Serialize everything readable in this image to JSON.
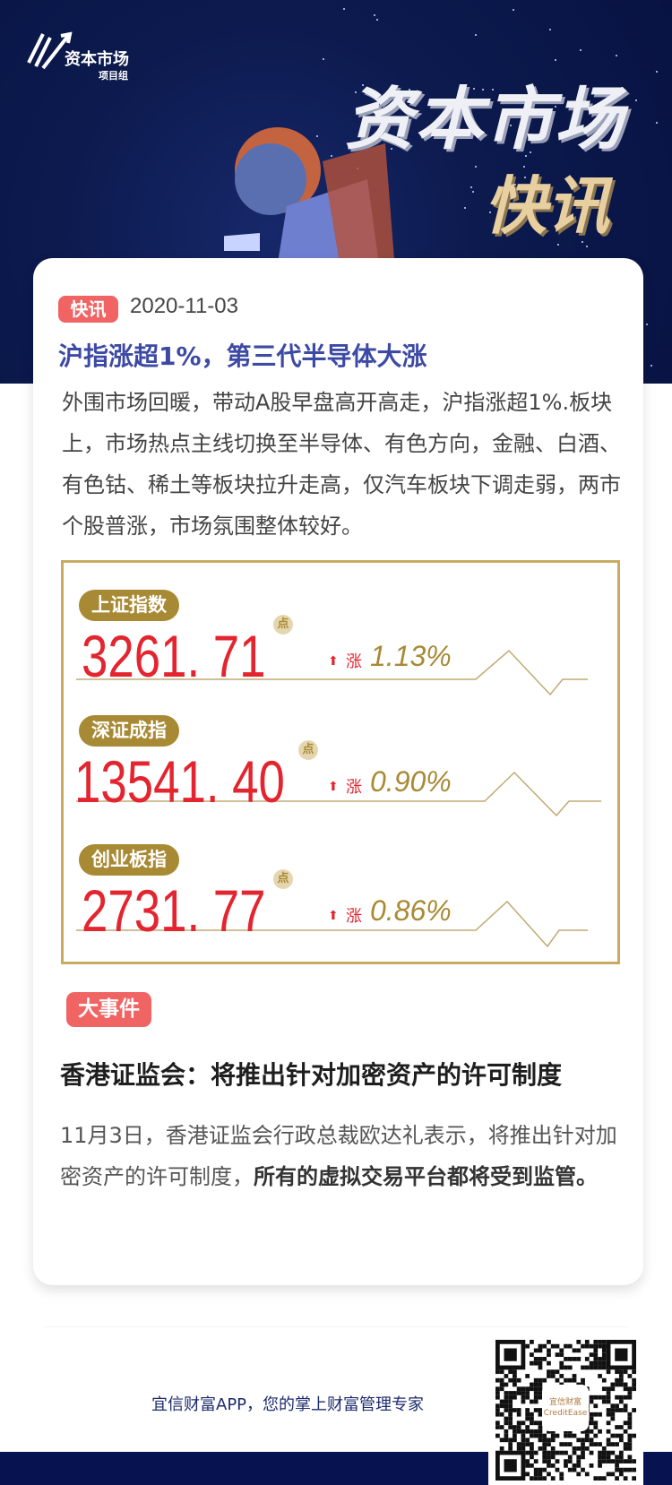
{
  "header": {
    "logo_title": "资本市场",
    "logo_subtitle": "项目组",
    "banner_title": "资本市场",
    "banner_subtitle": "快讯",
    "bg_color": "#0c1a4e"
  },
  "flash": {
    "badge": "快讯",
    "date": "2020-11-03",
    "headline": "沪指涨超1%，第三代半导体大涨",
    "body": "外围市场回暖，带动A股早盘高开高走，沪指涨超1%.板块上，市场热点主线切换至半导体、有色方向，金融、白酒、有色钴、稀土等板块拉升走高，仅汽车板块下调走弱，两市个股普涨，市场氛围整体较好。"
  },
  "indices": [
    {
      "name": "上证指数",
      "value": "3261. 71",
      "unit": "点",
      "direction": "up",
      "change_label": "涨",
      "change": "1.13%"
    },
    {
      "name": "深证成指",
      "value": "13541. 40",
      "unit": "点",
      "direction": "up",
      "change_label": "涨",
      "change": "0.90%"
    },
    {
      "name": "创业板指",
      "value": "2731. 77",
      "unit": "点",
      "direction": "up",
      "change_label": "涨",
      "change": "0.86%"
    }
  ],
  "event": {
    "badge": "大事件",
    "headline": "香港证监会：将推出针对加密资产的许可制度",
    "body_plain": "11月3日，香港证监会行政总裁欧达礼表示，将推出针对加密资产的许可制度，",
    "body_bold": "所有的虚拟交易平台都将受到监管。"
  },
  "footer": {
    "slogan": "宜信财富APP，您的掌上财富管理专家",
    "qr_logo": "宜信财富",
    "qr_logo_en": "CreditEase"
  },
  "colors": {
    "accent_red": "#e3252f",
    "gold": "#a88a35",
    "badge": "#f06464",
    "headline_blue": "#3d4aa5",
    "navy": "#061350"
  }
}
